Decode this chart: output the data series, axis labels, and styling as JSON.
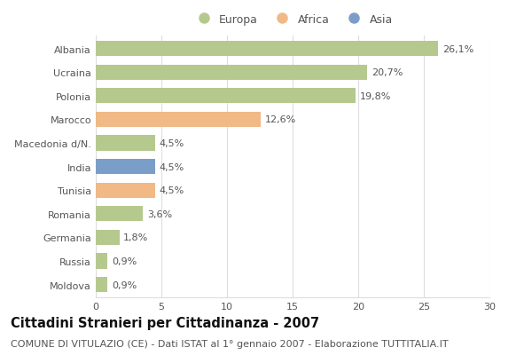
{
  "categories": [
    "Albania",
    "Ucraina",
    "Polonia",
    "Marocco",
    "Macedonia d/N.",
    "India",
    "Tunisia",
    "Romania",
    "Germania",
    "Russia",
    "Moldova"
  ],
  "values": [
    26.1,
    20.7,
    19.8,
    12.6,
    4.5,
    4.5,
    4.5,
    3.6,
    1.8,
    0.9,
    0.9
  ],
  "labels": [
    "26,1%",
    "20,7%",
    "19,8%",
    "12,6%",
    "4,5%",
    "4,5%",
    "4,5%",
    "3,6%",
    "1,8%",
    "0,9%",
    "0,9%"
  ],
  "continents": [
    "Europa",
    "Europa",
    "Europa",
    "Africa",
    "Europa",
    "Asia",
    "Africa",
    "Europa",
    "Europa",
    "Europa",
    "Europa"
  ],
  "colors": {
    "Europa": "#b5c98e",
    "Africa": "#f0b986",
    "Asia": "#7b9ec9"
  },
  "xlim": [
    0,
    30
  ],
  "xticks": [
    0,
    5,
    10,
    15,
    20,
    25,
    30
  ],
  "title": "Cittadini Stranieri per Cittadinanza - 2007",
  "subtitle": "COMUNE DI VITULAZIO (CE) - Dati ISTAT al 1° gennaio 2007 - Elaborazione TUTTITALIA.IT",
  "bg_color": "#ffffff",
  "fig_bg_color": "#ffffff",
  "grid_color": "#dddddd",
  "title_fontsize": 10.5,
  "subtitle_fontsize": 8,
  "label_fontsize": 8,
  "tick_fontsize": 8,
  "legend_fontsize": 9
}
